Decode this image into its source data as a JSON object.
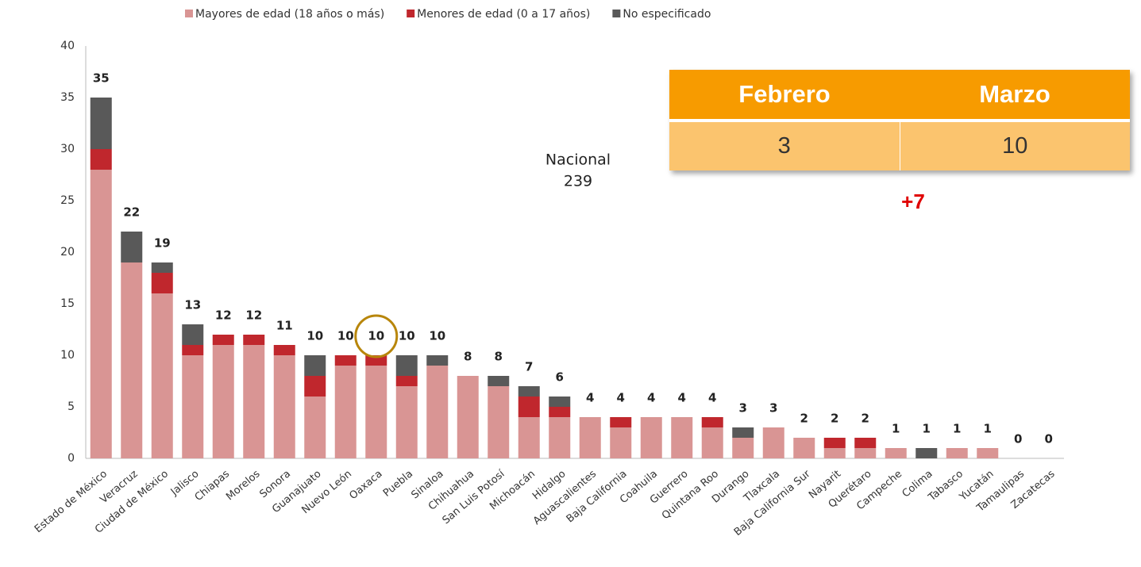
{
  "chart_data": {
    "type": "stacked_bar",
    "categories": [
      "Estado de México",
      "Veracruz",
      "Ciudad de México",
      "Jalisco",
      "Chiapas",
      "Morelos",
      "Sonora",
      "Guanajuato",
      "Nuevo León",
      "Oaxaca",
      "Puebla",
      "Sinaloa",
      "Chihuahua",
      "San Luis Potosí",
      "Michoacán",
      "Hidalgo",
      "Aguascalientes",
      "Baja California",
      "Coahuila",
      "Guerrero",
      "Quintana Roo",
      "Durango",
      "Tlaxcala",
      "Baja California Sur",
      "Nayarit",
      "Querétaro",
      "Campeche",
      "Colima",
      "Tabasco",
      "Yucatán",
      "Tamaulipas",
      "Zacatecas"
    ],
    "series": [
      {
        "name": "Mayores de edad (18 años o más)",
        "color": "#d99594",
        "values": [
          28,
          19,
          16,
          10,
          11,
          11,
          10,
          6,
          9,
          9,
          7,
          9,
          8,
          7,
          4,
          4,
          4,
          3,
          4,
          4,
          3,
          2,
          3,
          2,
          1,
          1,
          1,
          0,
          1,
          1,
          0,
          0
        ]
      },
      {
        "name": "Menores de edad (0 a 17 años)",
        "color": "#c0272d",
        "values": [
          2,
          0,
          2,
          1,
          1,
          1,
          1,
          2,
          1,
          1,
          1,
          0,
          0,
          0,
          2,
          1,
          0,
          1,
          0,
          0,
          1,
          0,
          0,
          0,
          1,
          1,
          0,
          0,
          0,
          0,
          0,
          0
        ]
      },
      {
        "name": "No especificado",
        "color": "#595959",
        "values": [
          5,
          3,
          1,
          2,
          0,
          0,
          0,
          2,
          0,
          0,
          2,
          1,
          0,
          1,
          1,
          1,
          0,
          0,
          0,
          0,
          0,
          1,
          0,
          0,
          0,
          0,
          0,
          1,
          0,
          0,
          0,
          0
        ]
      }
    ],
    "totals": [
      35,
      22,
      19,
      13,
      12,
      12,
      11,
      10,
      10,
      10,
      10,
      10,
      8,
      8,
      7,
      6,
      4,
      4,
      4,
      4,
      4,
      3,
      3,
      2,
      2,
      2,
      1,
      1,
      1,
      1,
      0,
      0
    ],
    "ylim": [
      0,
      40
    ],
    "yticks": [
      0,
      5,
      10,
      15,
      20,
      25,
      30,
      35,
      40
    ],
    "annotations": [
      "Nacional",
      "239",
      "+7"
    ]
  },
  "table": {
    "headers": [
      "Febrero",
      "Marzo"
    ],
    "values": [
      3,
      10
    ]
  }
}
